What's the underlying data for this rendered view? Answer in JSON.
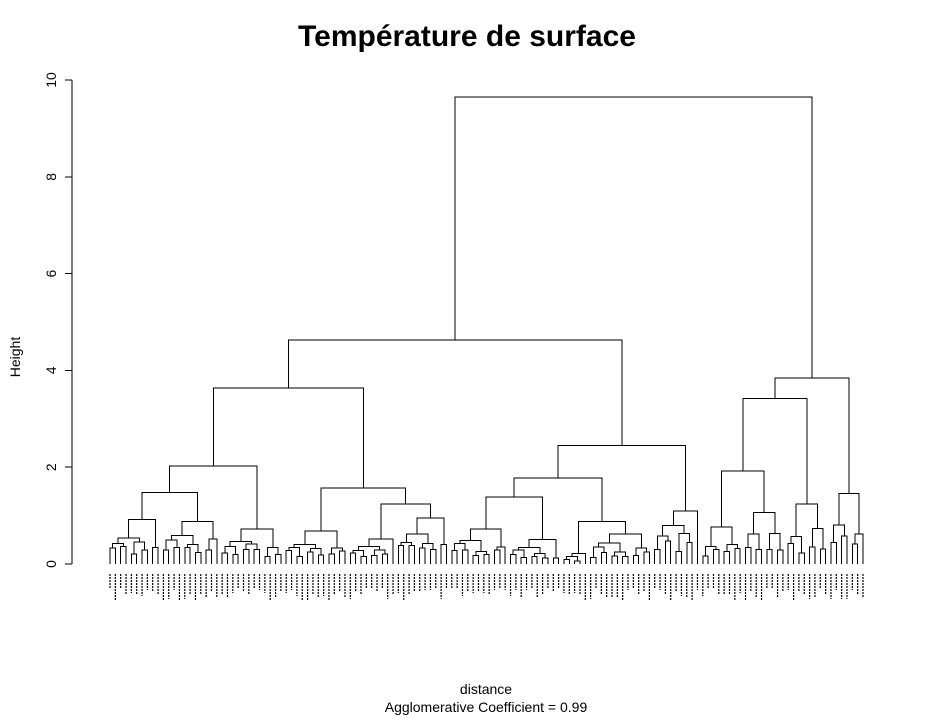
{
  "chart_data": {
    "type": "dendrogram",
    "title": "Température de surface",
    "xlabel": "distance",
    "ylabel": "Height",
    "subtitle_label": "Agglomerative Coefficient = ",
    "subtitle_value": "0.99",
    "ylim": [
      0,
      10
    ],
    "y_ticks": [
      0,
      2,
      4,
      6,
      8,
      10
    ],
    "root_height": 9.65,
    "clusters": [
      {
        "height": 4.63,
        "children": [
          {
            "height": 3.64,
            "children": [
              {
                "height": 2.02,
                "children": [
                  {
                    "height": 1.48,
                    "children": [
                      {
                        "height": 0.92,
                        "leaves": 10
                      },
                      {
                        "height": 0.88,
                        "leaves": 11
                      }
                    ]
                  },
                  {
                    "height": 0.72,
                    "leaves": 12
                  }
                ]
              },
              {
                "height": 1.57,
                "children": [
                  {
                    "height": 0.68,
                    "leaves": 12
                  },
                  {
                    "height": 1.24,
                    "children": [
                      {
                        "height": 0.52,
                        "leaves": 9
                      },
                      {
                        "height": 0.95,
                        "leaves": 10
                      }
                    ]
                  }
                ]
              }
            ]
          },
          {
            "height": 2.45,
            "children": [
              {
                "height": 1.78,
                "children": [
                  {
                    "height": 1.38,
                    "children": [
                      {
                        "height": 0.72,
                        "leaves": 11
                      },
                      {
                        "height": 0.51,
                        "leaves": 10
                      }
                    ]
                  },
                  {
                    "height": 0.88,
                    "children": [
                      {
                        "height": 0.22,
                        "leaves": 5
                      },
                      {
                        "height": 0.62,
                        "leaves": 12
                      }
                    ]
                  }
                ]
              },
              {
                "height": 1.1,
                "leaves": 9
              }
            ]
          }
        ]
      },
      {
        "height": 3.84,
        "children": [
          {
            "height": 3.42,
            "children": [
              {
                "height": 1.92,
                "children": [
                  {
                    "height": 0.76,
                    "leaves": 8
                  },
                  {
                    "height": 1.06,
                    "leaves": 8
                  }
                ]
              },
              {
                "height": 1.24,
                "leaves": 8
              }
            ]
          },
          {
            "height": 1.46,
            "leaves": 7
          }
        ]
      }
    ]
  }
}
